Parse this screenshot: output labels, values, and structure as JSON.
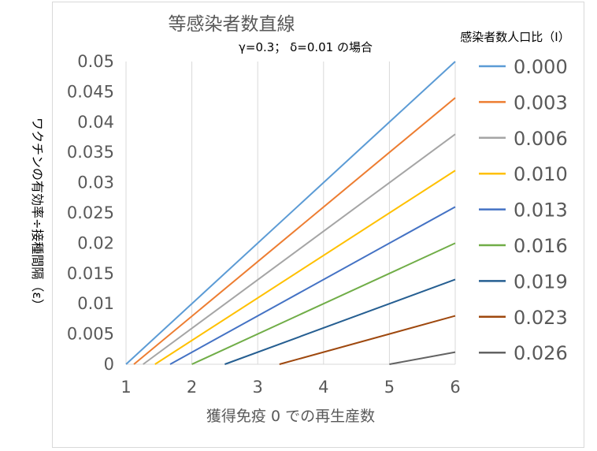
{
  "chart_data": {
    "type": "line",
    "title": "等感染者数直線",
    "subtitle": "γ=0.3； δ=0.01 の場合",
    "xlabel": "獲得免疫 0 での再生産数",
    "ylabel": "ワクチンの有効率÷接種間隔（ε）",
    "xlim": [
      1,
      6
    ],
    "ylim": [
      0,
      0.05
    ],
    "xticks": [
      "1",
      "2",
      "3",
      "4",
      "5",
      "6"
    ],
    "yticks": [
      "0",
      "0.005",
      "0.01",
      "0.015",
      "0.02",
      "0.025",
      "0.03",
      "0.035",
      "0.04",
      "0.045",
      "0.05"
    ],
    "grid": "vertical",
    "legend_title": "感染者数人口比（I）",
    "legend_position": "right",
    "series": [
      {
        "name": "0.000",
        "color": "#5b9bd5",
        "points": [
          [
            1,
            0
          ],
          [
            6,
            0.05
          ]
        ]
      },
      {
        "name": "0.003",
        "color": "#ed7d31",
        "points": [
          [
            1.12,
            0
          ],
          [
            6,
            0.044
          ]
        ]
      },
      {
        "name": "0.006",
        "color": "#a5a5a5",
        "points": [
          [
            1.26,
            0
          ],
          [
            6,
            0.038
          ]
        ]
      },
      {
        "name": "0.010",
        "color": "#ffc000",
        "points": [
          [
            1.44,
            0
          ],
          [
            6,
            0.032
          ]
        ]
      },
      {
        "name": "0.013",
        "color": "#4472c4",
        "points": [
          [
            1.67,
            0
          ],
          [
            6,
            0.026
          ]
        ]
      },
      {
        "name": "0.016",
        "color": "#70ad47",
        "points": [
          [
            2.0,
            0
          ],
          [
            6,
            0.02
          ]
        ]
      },
      {
        "name": "0.019",
        "color": "#255e91",
        "points": [
          [
            2.5,
            0
          ],
          [
            6,
            0.014
          ]
        ]
      },
      {
        "name": "0.023",
        "color": "#9e480e",
        "points": [
          [
            3.33,
            0
          ],
          [
            6,
            0.008
          ]
        ]
      },
      {
        "name": "0.026",
        "color": "#636363",
        "points": [
          [
            5.0,
            0
          ],
          [
            6,
            0.002
          ]
        ]
      }
    ]
  }
}
